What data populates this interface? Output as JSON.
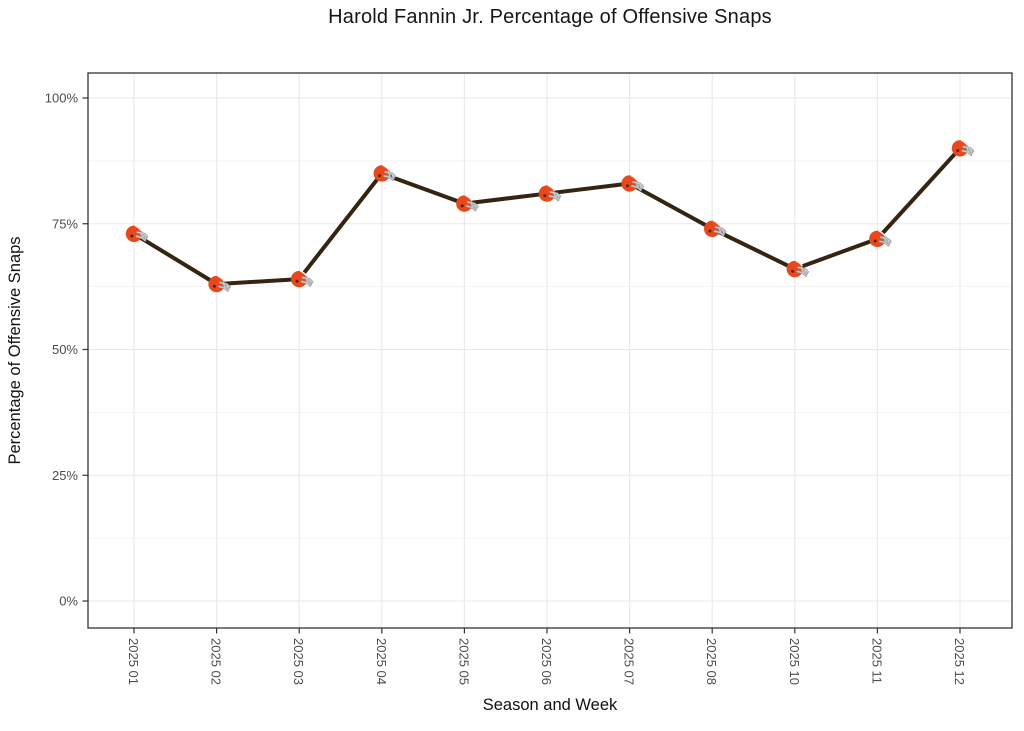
{
  "chart_data": {
    "type": "line",
    "title": "Harold Fannin Jr. Percentage of Offensive Snaps",
    "xlabel": "Season and Week",
    "ylabel": "Percentage of Offensive Snaps",
    "categories": [
      "2025 01",
      "2025 02",
      "2025 03",
      "2025 04",
      "2025 05",
      "2025 06",
      "2025 07",
      "2025 08",
      "2025 10",
      "2025 11",
      "2025 12"
    ],
    "values": [
      73,
      63,
      64,
      85,
      79,
      81,
      83,
      74,
      66,
      72,
      90
    ],
    "y_ticks": [
      0,
      25,
      50,
      75,
      100
    ],
    "y_tick_labels": [
      "0%",
      "25%",
      "50%",
      "75%",
      "100%"
    ],
    "y_minor_ticks": [
      12.5,
      37.5,
      62.5,
      87.5
    ],
    "ylim": [
      -5,
      105
    ],
    "grid": "major-and-minor-horizontal, major-vertical",
    "legend": "none",
    "marker": "browns-helmet-icon",
    "colors": {
      "line": "#35240F",
      "marker_shell": "#E8481C",
      "marker_stripe": "#F2EEE9",
      "marker_earhole": "#55230C",
      "facemask_light": "#C9CCCE",
      "facemask_dark": "#8E9194",
      "grid_major": "#E9E9E9",
      "grid_minor": "#F4F4F4",
      "panel_border": "#333333",
      "tick_mark": "#333333",
      "tick_text": "#4D4D4D",
      "title_text": "#161616"
    }
  }
}
